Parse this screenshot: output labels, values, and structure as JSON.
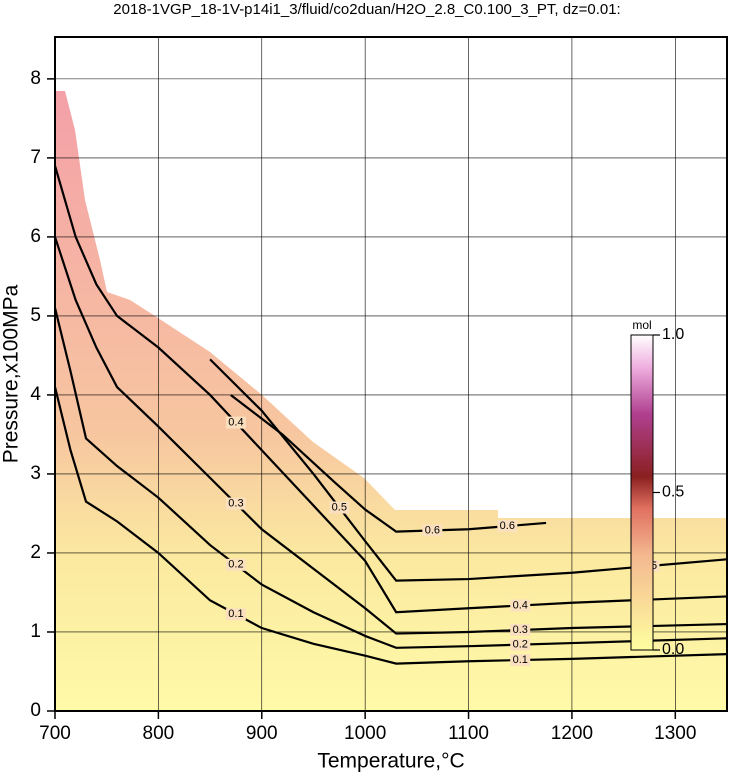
{
  "chart_data": {
    "type": "contour",
    "title": "2018-1VGP_18-1V-p14i1_3/fluid/co2duan/H2O_2.8_C0.100_3_PT, dz=0.01:",
    "x_label": "Temperature,°C",
    "y_label": "Pressure,x100MPa",
    "xlim": [
      700,
      1350
    ],
    "ylim": [
      0,
      8.53
    ],
    "xticks": [
      700,
      800,
      900,
      1000,
      1100,
      1200,
      1300
    ],
    "yticks": [
      0,
      1,
      2,
      3,
      4,
      5,
      6,
      7,
      8
    ],
    "grid": true,
    "series": [
      {
        "name": "0.1",
        "color": "#000000",
        "x": [
          700,
          715,
          730,
          760,
          800,
          850,
          900,
          950,
          1000,
          1030,
          1100,
          1200,
          1350
        ],
        "values": [
          4.1,
          3.3,
          2.65,
          2.4,
          2.0,
          1.4,
          1.05,
          0.85,
          0.7,
          0.6,
          0.63,
          0.66,
          0.72
        ]
      },
      {
        "name": "0.2",
        "color": "#000000",
        "x": [
          700,
          715,
          730,
          760,
          800,
          850,
          900,
          950,
          1000,
          1030,
          1100,
          1200,
          1350
        ],
        "values": [
          5.1,
          4.3,
          3.45,
          3.1,
          2.7,
          2.1,
          1.6,
          1.25,
          0.95,
          0.8,
          0.82,
          0.86,
          0.92
        ]
      },
      {
        "name": "0.3",
        "color": "#000000",
        "x": [
          700,
          720,
          740,
          760,
          800,
          850,
          900,
          950,
          1000,
          1030,
          1100,
          1200,
          1350
        ],
        "values": [
          6.0,
          5.2,
          4.6,
          4.1,
          3.6,
          2.95,
          2.3,
          1.8,
          1.3,
          0.98,
          1.0,
          1.05,
          1.1
        ]
      },
      {
        "name": "0.4",
        "color": "#000000",
        "x": [
          700,
          720,
          740,
          760,
          800,
          850,
          900,
          950,
          1000,
          1030,
          1100,
          1200,
          1350
        ],
        "values": [
          6.9,
          6.0,
          5.4,
          5.0,
          4.6,
          4.0,
          3.3,
          2.6,
          1.9,
          1.25,
          1.3,
          1.37,
          1.45
        ]
      },
      {
        "name": "0.5",
        "color": "#000000",
        "x": [
          850,
          900,
          950,
          1000,
          1030,
          1100,
          1200,
          1350
        ],
        "values": [
          4.45,
          3.8,
          3.0,
          2.15,
          1.65,
          1.67,
          1.75,
          1.92
        ]
      },
      {
        "name": "0.6",
        "color": "#000000",
        "x": [
          870,
          920,
          970,
          1000,
          1030,
          1100,
          1175
        ],
        "values": [
          4.0,
          3.5,
          2.9,
          2.55,
          2.27,
          2.3,
          2.38
        ]
      }
    ],
    "colorbar": {
      "label": "mol",
      "lim": [
        0,
        1
      ],
      "ticks": [
        {
          "value": 0,
          "label": "0.0"
        },
        {
          "value": 0.5,
          "label": "0.5"
        },
        {
          "value": 1,
          "label": "1.0"
        }
      ]
    }
  }
}
